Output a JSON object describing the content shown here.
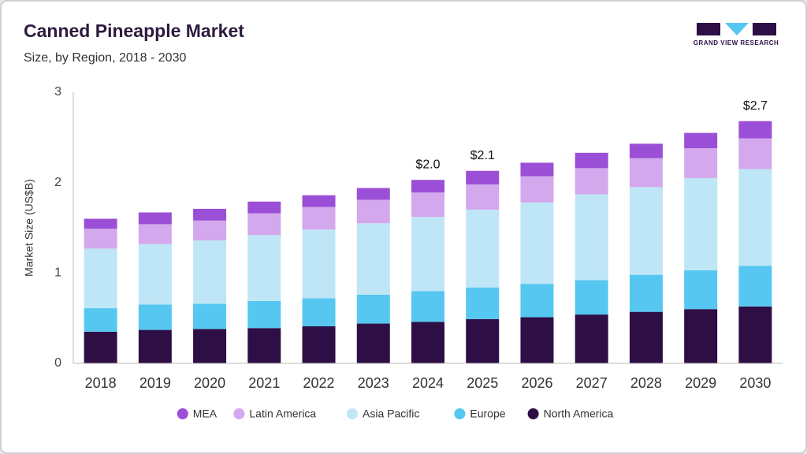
{
  "chart_data": {
    "type": "stacked-bar",
    "title": "Canned Pineapple Market",
    "subtitle": "Size, by Region, 2018 - 2030",
    "y_label": "Market Size (US$B)",
    "brand": "GRAND VIEW RESEARCH",
    "categories": [
      "2018",
      "2019",
      "2020",
      "2021",
      "2022",
      "2023",
      "2024",
      "2025",
      "2026",
      "2027",
      "2028",
      "2029",
      "2030"
    ],
    "series": [
      {
        "name": "MEA",
        "color": "#9b4fd6",
        "values": [
          0.11,
          0.13,
          0.13,
          0.13,
          0.13,
          0.13,
          0.14,
          0.15,
          0.15,
          0.17,
          0.16,
          0.17,
          0.19
        ]
      },
      {
        "name": "Latin America",
        "color": "#d4a8ec",
        "values": [
          0.22,
          0.22,
          0.22,
          0.24,
          0.25,
          0.26,
          0.27,
          0.28,
          0.29,
          0.29,
          0.32,
          0.33,
          0.34
        ]
      },
      {
        "name": "Asia Pacific",
        "color": "#bfe6f7",
        "values": [
          0.66,
          0.67,
          0.7,
          0.73,
          0.76,
          0.79,
          0.82,
          0.86,
          0.9,
          0.95,
          0.97,
          1.02,
          1.07
        ]
      },
      {
        "name": "Europe",
        "color": "#56c7f0",
        "values": [
          0.26,
          0.28,
          0.28,
          0.3,
          0.31,
          0.32,
          0.34,
          0.35,
          0.37,
          0.38,
          0.41,
          0.43,
          0.45
        ]
      },
      {
        "name": "North America",
        "color": "#2e0f45",
        "values": [
          0.35,
          0.37,
          0.38,
          0.39,
          0.41,
          0.44,
          0.46,
          0.49,
          0.51,
          0.54,
          0.57,
          0.6,
          0.63
        ]
      }
    ],
    "annotations": [
      {
        "category": "2024",
        "label": "$2.0"
      },
      {
        "category": "2025",
        "label": "$2.1"
      },
      {
        "category": "2030",
        "label": "$2.7"
      }
    ],
    "ylim": [
      0,
      3
    ],
    "yticks": [
      0,
      1,
      2,
      3
    ],
    "grid": false,
    "legend": "bottom"
  }
}
